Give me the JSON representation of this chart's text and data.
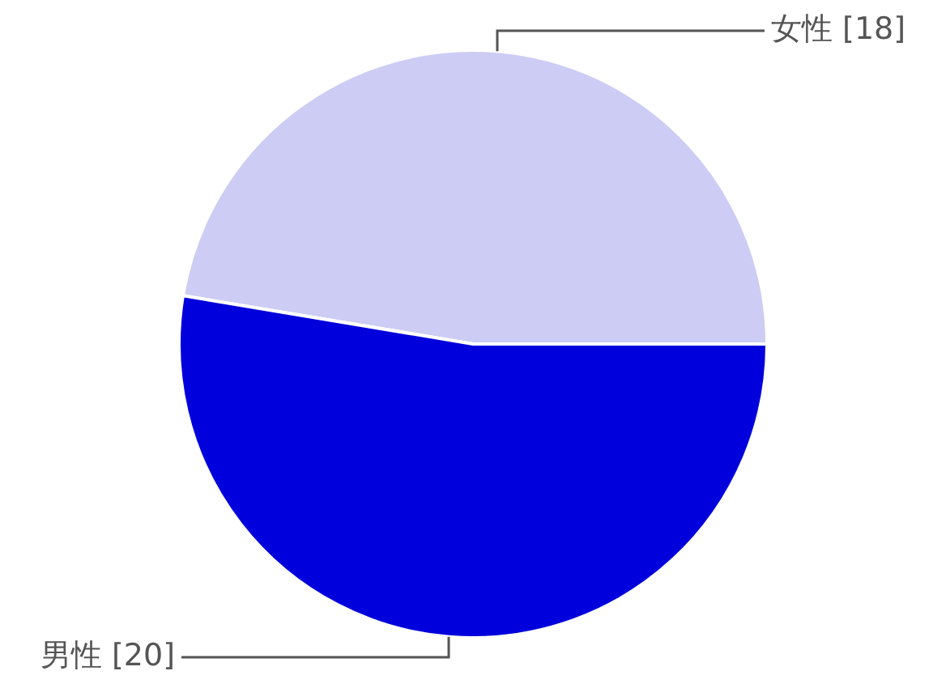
{
  "chart_data": {
    "type": "pie",
    "categories": [
      "女性",
      "男性"
    ],
    "values": [
      18,
      20
    ],
    "colors": [
      "#ccccf5",
      "#0000dd"
    ],
    "value_labels": [
      "[18]",
      "[20]"
    ],
    "legend": false
  }
}
